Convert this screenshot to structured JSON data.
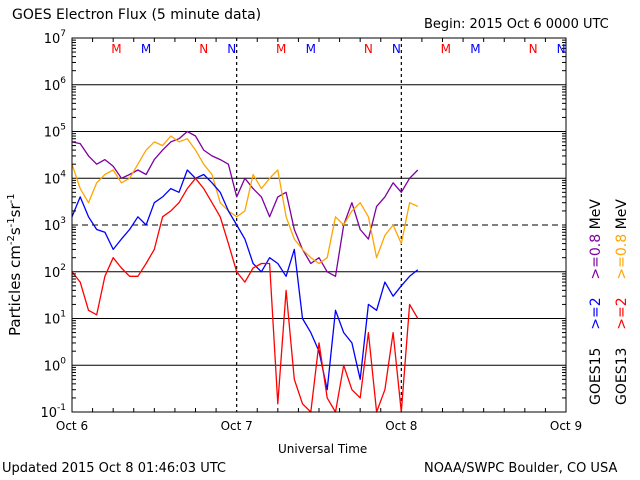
{
  "header": {
    "title": "GOES Electron Flux (5 minute data)",
    "begin": "Begin: 2015 Oct 6 0000 UTC"
  },
  "footer": {
    "updated": "Updated 2015 Oct  8 01:46:03 UTC",
    "credit": "NOAA/SWPC Boulder, CO USA"
  },
  "colors": {
    "goes13_ge08": "#FFA500",
    "goes15_ge08": "#7F00A0",
    "goes13_ge2": "#FF0000",
    "goes15_ge2": "#0000FF",
    "noon_m": "#FF0000",
    "noon_m2": "#0000FF"
  },
  "chart_data": {
    "type": "line",
    "title": "GOES Electron Flux (5 minute data)",
    "xlabel": "Universal Time",
    "ylabel": "Particles cm-2s-1sr-1",
    "x_range_days": [
      0,
      3
    ],
    "x_ticks": [
      "Oct 6",
      "Oct 7",
      "Oct 8",
      "Oct 9"
    ],
    "yscale": "log",
    "ylim": [
      0.1,
      10000000
    ],
    "y_ticks": [
      {
        "value": 0.1,
        "base": "10",
        "exp": "-1"
      },
      {
        "value": 1,
        "base": "10",
        "exp": "0"
      },
      {
        "value": 10,
        "base": "10",
        "exp": "1"
      },
      {
        "value": 100,
        "base": "10",
        "exp": "2"
      },
      {
        "value": 1000,
        "base": "10",
        "exp": "3"
      },
      {
        "value": 10000,
        "base": "10",
        "exp": "4"
      },
      {
        "value": 100000,
        "base": "10",
        "exp": "5"
      },
      {
        "value": 1000000,
        "base": "10",
        "exp": "6"
      },
      {
        "value": 10000000,
        "base": "10",
        "exp": "7"
      }
    ],
    "threshold_line": 1000,
    "noon_markers": [
      {
        "day": 0.27,
        "label": "M",
        "color": "#FF0000"
      },
      {
        "day": 0.45,
        "label": "M",
        "color": "#0000FF"
      },
      {
        "day": 0.8,
        "label": "N",
        "color": "#FF0000"
      },
      {
        "day": 0.97,
        "label": "N",
        "color": "#0000FF"
      },
      {
        "day": 1.27,
        "label": "M",
        "color": "#FF0000"
      },
      {
        "day": 1.45,
        "label": "M",
        "color": "#0000FF"
      },
      {
        "day": 1.8,
        "label": "N",
        "color": "#FF0000"
      },
      {
        "day": 1.97,
        "label": "N",
        "color": "#0000FF"
      },
      {
        "day": 2.27,
        "label": "M",
        "color": "#FF0000"
      },
      {
        "day": 2.45,
        "label": "M",
        "color": "#0000FF"
      },
      {
        "day": 2.8,
        "label": "N",
        "color": "#FF0000"
      },
      {
        "day": 2.97,
        "label": "N",
        "color": "#0000FF"
      }
    ],
    "legend": {
      "col_left": [
        {
          "sat": "GOES15",
          "energy": ">=2",
          "unit": "",
          "color_sat": "#000000",
          "color_energy": "#0000FF"
        },
        {
          "sat": "",
          "energy": ">=0.8",
          "unit": "MeV",
          "color_sat": "#000000",
          "color_energy": "#7F00A0"
        }
      ],
      "col_right": [
        {
          "sat": "GOES13",
          "energy": ">=2",
          "unit": "",
          "color_sat": "#000000",
          "color_energy": "#FF0000"
        },
        {
          "sat": "",
          "energy": ">=0.8",
          "unit": "MeV",
          "color_sat": "#000000",
          "color_energy": "#FFA500"
        }
      ]
    },
    "series": [
      {
        "name": "GOES15 >=0.8 MeV",
        "color": "#7F00A0",
        "x": [
          0.0,
          0.05,
          0.1,
          0.15,
          0.2,
          0.25,
          0.3,
          0.35,
          0.4,
          0.45,
          0.5,
          0.55,
          0.6,
          0.65,
          0.7,
          0.75,
          0.8,
          0.85,
          0.9,
          0.95,
          1.0,
          1.05,
          1.1,
          1.15,
          1.2,
          1.25,
          1.3,
          1.35,
          1.4,
          1.45,
          1.5,
          1.55,
          1.6,
          1.65,
          1.7,
          1.75,
          1.8,
          1.85,
          1.9,
          1.95,
          2.0,
          2.05,
          2.1
        ],
        "y": [
          60000,
          55000,
          30000,
          20000,
          25000,
          18000,
          10000,
          12000,
          15000,
          12000,
          25000,
          40000,
          60000,
          70000,
          100000,
          80000,
          40000,
          30000,
          25000,
          20000,
          4000,
          10000,
          6000,
          4000,
          1500,
          4000,
          5000,
          800,
          300,
          150,
          200,
          100,
          80,
          1000,
          3000,
          800,
          500,
          2500,
          4000,
          8000,
          5000,
          10000,
          15000
        ]
      },
      {
        "name": "GOES13 >=0.8 MeV",
        "color": "#FFA500",
        "x": [
          0.0,
          0.05,
          0.1,
          0.15,
          0.2,
          0.25,
          0.3,
          0.35,
          0.4,
          0.45,
          0.5,
          0.55,
          0.6,
          0.65,
          0.7,
          0.75,
          0.8,
          0.85,
          0.9,
          0.95,
          1.0,
          1.05,
          1.1,
          1.15,
          1.2,
          1.25,
          1.3,
          1.35,
          1.4,
          1.45,
          1.5,
          1.55,
          1.6,
          1.65,
          1.7,
          1.75,
          1.8,
          1.85,
          1.9,
          1.95,
          2.0,
          2.05,
          2.1
        ],
        "y": [
          20000,
          6000,
          3000,
          8000,
          12000,
          15000,
          8000,
          10000,
          20000,
          40000,
          60000,
          50000,
          80000,
          60000,
          70000,
          40000,
          20000,
          12000,
          3000,
          2000,
          1500,
          2000,
          12000,
          6000,
          10000,
          15000,
          1500,
          500,
          300,
          200,
          150,
          200,
          1500,
          1000,
          2000,
          3000,
          1500,
          200,
          600,
          1000,
          400,
          3000,
          2500
        ]
      },
      {
        "name": "GOES15 >=2 MeV",
        "color": "#0000FF",
        "x": [
          0.0,
          0.05,
          0.1,
          0.15,
          0.2,
          0.25,
          0.3,
          0.35,
          0.4,
          0.45,
          0.5,
          0.55,
          0.6,
          0.65,
          0.7,
          0.75,
          0.8,
          0.85,
          0.9,
          0.95,
          1.0,
          1.05,
          1.1,
          1.15,
          1.2,
          1.25,
          1.3,
          1.35,
          1.4,
          1.45,
          1.5,
          1.55,
          1.6,
          1.65,
          1.7,
          1.75,
          1.8,
          1.85,
          1.9,
          1.95,
          2.0,
          2.05,
          2.1
        ],
        "y": [
          1500,
          4000,
          1500,
          800,
          700,
          300,
          500,
          800,
          1500,
          1000,
          3000,
          4000,
          6000,
          5000,
          15000,
          10000,
          12000,
          8000,
          5000,
          2000,
          1000,
          500,
          150,
          100,
          200,
          150,
          80,
          300,
          10,
          5,
          2,
          0.3,
          15,
          5,
          3,
          0.5,
          20,
          15,
          60,
          30,
          50,
          80,
          110
        ]
      },
      {
        "name": "GOES13 >=2 MeV",
        "color": "#FF0000",
        "x": [
          0.0,
          0.05,
          0.1,
          0.15,
          0.2,
          0.25,
          0.3,
          0.35,
          0.4,
          0.45,
          0.5,
          0.55,
          0.6,
          0.65,
          0.7,
          0.75,
          0.8,
          0.85,
          0.9,
          0.95,
          1.0,
          1.05,
          1.1,
          1.15,
          1.2,
          1.25,
          1.3,
          1.35,
          1.4,
          1.45,
          1.5,
          1.55,
          1.6,
          1.65,
          1.7,
          1.75,
          1.8,
          1.85,
          1.9,
          1.95,
          2.0,
          2.05,
          2.1
        ],
        "y": [
          100,
          60,
          15,
          12,
          80,
          200,
          120,
          80,
          80,
          150,
          300,
          1500,
          2000,
          3000,
          6000,
          10000,
          6000,
          3000,
          1500,
          400,
          100,
          60,
          120,
          150,
          150,
          0.15,
          40,
          0.5,
          0.15,
          0.1,
          3,
          0.2,
          0.1,
          1,
          0.3,
          0.2,
          5,
          0.1,
          0.3,
          5,
          0.1,
          20,
          10
        ]
      }
    ]
  }
}
